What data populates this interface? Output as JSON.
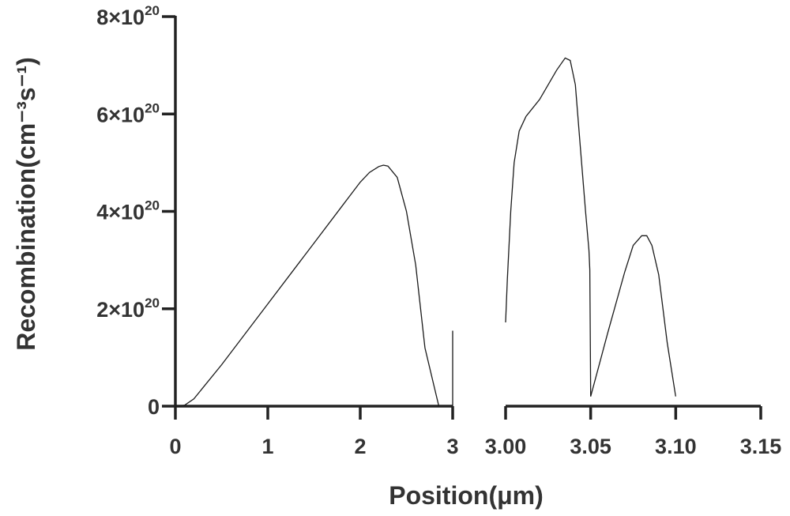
{
  "chart_data": {
    "type": "line",
    "xlabel": "Position(μm)",
    "ylabel": "Recombination(cm⁻³s⁻¹)",
    "ylim": [
      0,
      8e+20
    ],
    "y_ticks": [
      {
        "value": 0,
        "label": "0"
      },
      {
        "value": 2e+20,
        "label": "2×10",
        "exp": "20"
      },
      {
        "value": 4e+20,
        "label": "4×10",
        "exp": "20"
      },
      {
        "value": 6e+20,
        "label": "6×10",
        "exp": "20"
      },
      {
        "value": 8e+20,
        "label": "8×10",
        "exp": "20"
      }
    ],
    "x_axis_broken": true,
    "segments": [
      {
        "xlim": [
          0,
          3
        ],
        "x_ticks": [
          {
            "value": 0,
            "label": "0"
          },
          {
            "value": 1,
            "label": "1"
          },
          {
            "value": 2,
            "label": "2"
          },
          {
            "value": 3,
            "label": "3"
          }
        ],
        "series": [
          {
            "x": [
              0.0,
              0.05,
              0.1,
              0.2,
              0.5,
              1.0,
              1.5,
              1.8,
              2.0,
              2.1,
              2.2,
              2.25,
              2.3,
              2.4,
              2.5,
              2.6,
              2.7,
              2.8,
              2.85
            ],
            "y": [
              0,
              0,
              2e+18,
              1.5e+19,
              8.5e+19,
              2.1e+20,
              3.35e+20,
              4.1e+20,
              4.6e+20,
              4.8e+20,
              4.92e+20,
              4.95e+20,
              4.93e+20,
              4.7e+20,
              4e+20,
              2.9e+20,
              1.2e+20,
              4e+19,
              0
            ]
          },
          {
            "x": [
              3.0,
              3.0
            ],
            "y": [
              0,
              1.55e+20
            ]
          }
        ]
      },
      {
        "xlim": [
          3.0,
          3.15
        ],
        "x_ticks": [
          {
            "value": 3.0,
            "label": "3.00"
          },
          {
            "value": 3.05,
            "label": "3.05"
          },
          {
            "value": 3.1,
            "label": "3.10"
          },
          {
            "value": 3.15,
            "label": "3.15"
          }
        ],
        "series": [
          {
            "x": [
              3.0,
              3.001,
              3.003,
              3.005,
              3.008,
              3.012,
              3.02,
              3.03,
              3.035,
              3.038,
              3.041,
              3.044,
              3.047,
              3.049,
              3.0495,
              3.05
            ],
            "y": [
              1.72e+20,
              2.6e+20,
              4e+20,
              5e+20,
              5.65e+20,
              5.95e+20,
              6.3e+20,
              6.9e+20,
              7.15e+20,
              7.1e+20,
              6.6e+20,
              5.3e+20,
              4e+20,
              3.2e+20,
              2.8e+20,
              2e+19
            ]
          },
          {
            "x": [
              3.05,
              3.06,
              3.07,
              3.075,
              3.08,
              3.083,
              3.086,
              3.09,
              3.095,
              3.1
            ],
            "y": [
              2e+19,
              1.5e+20,
              2.75e+20,
              3.3e+20,
              3.5e+20,
              3.5e+20,
              3.3e+20,
              2.7e+20,
              1.3e+20,
              2e+19
            ]
          }
        ]
      }
    ]
  }
}
